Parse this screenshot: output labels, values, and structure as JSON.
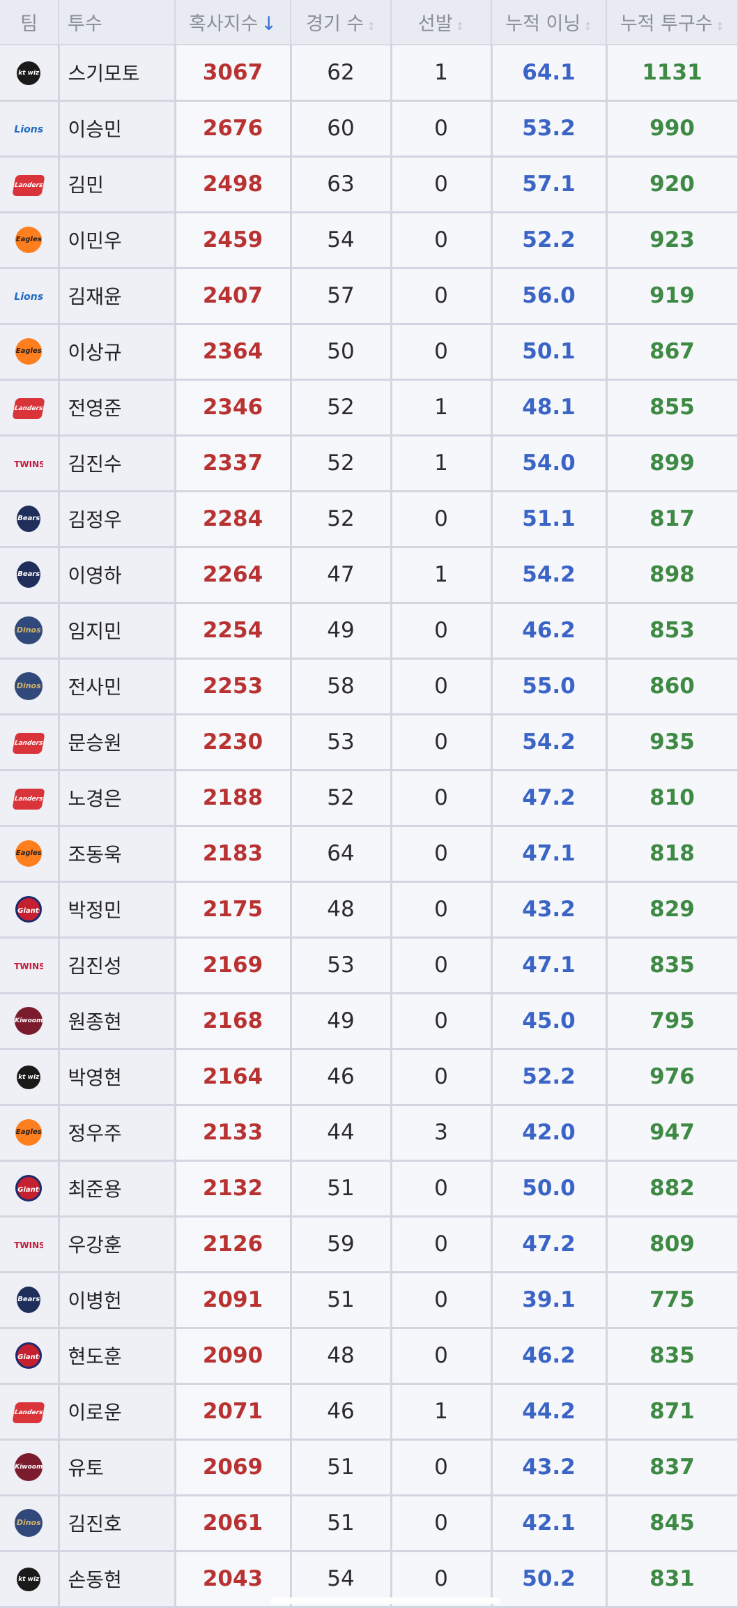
{
  "headers": {
    "team": "팀",
    "pitcher": "투수",
    "score": "혹사지수",
    "games": "경기 수",
    "starts": "선발",
    "innings": "누적 이닝",
    "pitches": "누적 투구수",
    "sort_active": "↓",
    "sort_inactive": "↕"
  },
  "rows": [
    {
      "team": "kt wiz",
      "name": "스기모토",
      "score": "3067",
      "games": "62",
      "starts": "1",
      "innings": "64.1",
      "pitches": "1131"
    },
    {
      "team": "Lions",
      "name": "이승민",
      "score": "2676",
      "games": "60",
      "starts": "0",
      "innings": "53.2",
      "pitches": "990"
    },
    {
      "team": "Landers",
      "name": "김민",
      "score": "2498",
      "games": "63",
      "starts": "0",
      "innings": "57.1",
      "pitches": "920"
    },
    {
      "team": "Eagles",
      "name": "이민우",
      "score": "2459",
      "games": "54",
      "starts": "0",
      "innings": "52.2",
      "pitches": "923"
    },
    {
      "team": "Lions",
      "name": "김재윤",
      "score": "2407",
      "games": "57",
      "starts": "0",
      "innings": "56.0",
      "pitches": "919"
    },
    {
      "team": "Eagles",
      "name": "이상규",
      "score": "2364",
      "games": "50",
      "starts": "0",
      "innings": "50.1",
      "pitches": "867"
    },
    {
      "team": "Landers",
      "name": "전영준",
      "score": "2346",
      "games": "52",
      "starts": "1",
      "innings": "48.1",
      "pitches": "855"
    },
    {
      "team": "TWINS",
      "name": "김진수",
      "score": "2337",
      "games": "52",
      "starts": "1",
      "innings": "54.0",
      "pitches": "899"
    },
    {
      "team": "Bears",
      "name": "김정우",
      "score": "2284",
      "games": "52",
      "starts": "0",
      "innings": "51.1",
      "pitches": "817"
    },
    {
      "team": "Bears",
      "name": "이영하",
      "score": "2264",
      "games": "47",
      "starts": "1",
      "innings": "54.2",
      "pitches": "898"
    },
    {
      "team": "Dinos",
      "name": "임지민",
      "score": "2254",
      "games": "49",
      "starts": "0",
      "innings": "46.2",
      "pitches": "853"
    },
    {
      "team": "Dinos",
      "name": "전사민",
      "score": "2253",
      "games": "58",
      "starts": "0",
      "innings": "55.0",
      "pitches": "860"
    },
    {
      "team": "Landers",
      "name": "문승원",
      "score": "2230",
      "games": "53",
      "starts": "0",
      "innings": "54.2",
      "pitches": "935"
    },
    {
      "team": "Landers",
      "name": "노경은",
      "score": "2188",
      "games": "52",
      "starts": "0",
      "innings": "47.2",
      "pitches": "810"
    },
    {
      "team": "Eagles",
      "name": "조동욱",
      "score": "2183",
      "games": "64",
      "starts": "0",
      "innings": "47.1",
      "pitches": "818"
    },
    {
      "team": "Giants",
      "name": "박정민",
      "score": "2175",
      "games": "48",
      "starts": "0",
      "innings": "43.2",
      "pitches": "829"
    },
    {
      "team": "TWINS",
      "name": "김진성",
      "score": "2169",
      "games": "53",
      "starts": "0",
      "innings": "47.1",
      "pitches": "835"
    },
    {
      "team": "Kiwoom",
      "name": "원종현",
      "score": "2168",
      "games": "49",
      "starts": "0",
      "innings": "45.0",
      "pitches": "795"
    },
    {
      "team": "kt wiz",
      "name": "박영현",
      "score": "2164",
      "games": "46",
      "starts": "0",
      "innings": "52.2",
      "pitches": "976"
    },
    {
      "team": "Eagles",
      "name": "정우주",
      "score": "2133",
      "games": "44",
      "starts": "3",
      "innings": "42.0",
      "pitches": "947"
    },
    {
      "team": "Giants",
      "name": "최준용",
      "score": "2132",
      "games": "51",
      "starts": "0",
      "innings": "50.0",
      "pitches": "882"
    },
    {
      "team": "TWINS",
      "name": "우강훈",
      "score": "2126",
      "games": "59",
      "starts": "0",
      "innings": "47.2",
      "pitches": "809"
    },
    {
      "team": "Bears",
      "name": "이병헌",
      "score": "2091",
      "games": "51",
      "starts": "0",
      "innings": "39.1",
      "pitches": "775"
    },
    {
      "team": "Giants",
      "name": "현도훈",
      "score": "2090",
      "games": "48",
      "starts": "0",
      "innings": "46.2",
      "pitches": "835"
    },
    {
      "team": "Landers",
      "name": "이로운",
      "score": "2071",
      "games": "46",
      "starts": "1",
      "innings": "44.2",
      "pitches": "871"
    },
    {
      "team": "Kiwoom",
      "name": "유토",
      "score": "2069",
      "games": "51",
      "starts": "0",
      "innings": "43.2",
      "pitches": "837"
    },
    {
      "team": "Dinos",
      "name": "김진호",
      "score": "2061",
      "games": "51",
      "starts": "0",
      "innings": "42.1",
      "pitches": "845"
    },
    {
      "team": "kt wiz",
      "name": "손동현",
      "score": "2043",
      "games": "54",
      "starts": "0",
      "innings": "50.2",
      "pitches": "831"
    }
  ],
  "colors": {
    "score": "#b83232",
    "innings": "#3a64c6",
    "pitches": "#3e8a44",
    "sort_active": "#3d6fd6"
  }
}
